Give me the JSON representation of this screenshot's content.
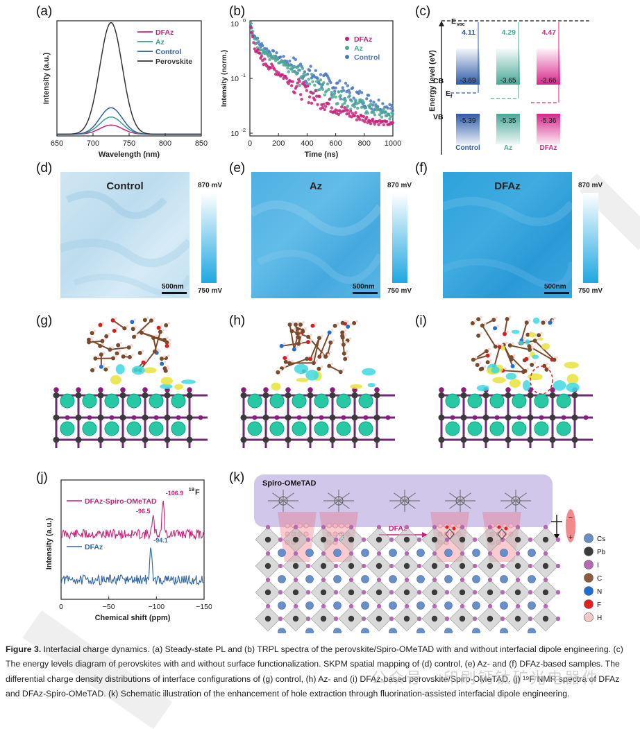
{
  "panels": {
    "a": {
      "label": "(a)"
    },
    "b": {
      "label": "(b)"
    },
    "c": {
      "label": "(c)"
    },
    "d": {
      "label": "(d)"
    },
    "e": {
      "label": "(e)"
    },
    "f": {
      "label": "(f)"
    },
    "g": {
      "label": "(g)"
    },
    "h": {
      "label": "(h)"
    },
    "i": {
      "label": "(i)"
    },
    "j": {
      "label": "(j)"
    },
    "k": {
      "label": "(k)"
    }
  },
  "chart_data": [
    {
      "id": "a",
      "type": "line",
      "title": "",
      "xlabel": "Wavelength (nm)",
      "ylabel": "Intensity (a.u.)",
      "xlim": [
        650,
        850
      ],
      "xticks": [
        "650",
        "700",
        "750",
        "800",
        "850"
      ],
      "legend": [
        "DFAz",
        "Az",
        "Control",
        "Perovskite"
      ],
      "series": [
        {
          "name": "DFAz",
          "color": "#c8207a",
          "center": 725,
          "peak": 0.08
        },
        {
          "name": "Az",
          "color": "#3a9a8a",
          "center": 725,
          "peak": 0.15
        },
        {
          "name": "Control",
          "color": "#2e5f9e",
          "center": 725,
          "peak": 0.23
        },
        {
          "name": "Perovskite",
          "color": "#333333",
          "center": 725,
          "peak": 0.97
        }
      ]
    },
    {
      "id": "b",
      "type": "scatter",
      "title": "",
      "xlabel": "Time (ns)",
      "ylabel": "Intensity (norm.)",
      "xlim": [
        0,
        1000
      ],
      "ylim": [
        0.01,
        1
      ],
      "yscale": "log",
      "xticks": [
        "0",
        "200",
        "400",
        "600",
        "800",
        "1000"
      ],
      "yticks": [
        "10⁰",
        "10⁻¹",
        "10⁻²"
      ],
      "ytick_labels": [
        "10",
        "10",
        "10"
      ],
      "ytick_exps": [
        "0",
        "-1",
        "-2"
      ],
      "legend": [
        "DFAz",
        "Az",
        "Control"
      ],
      "series": [
        {
          "name": "Control",
          "color": "#4a78bf",
          "tau1": 30,
          "tau2": 300,
          "a1": 0.55
        },
        {
          "name": "Az",
          "color": "#49a892",
          "tau1": 28,
          "tau2": 260,
          "a1": 0.6
        },
        {
          "name": "DFAz",
          "color": "#c8207a",
          "tau1": 20,
          "tau2": 210,
          "a1": 0.7
        }
      ]
    },
    {
      "id": "c",
      "type": "bar",
      "title": "",
      "ylabel": "Energy  level (eV)",
      "vacuum_label": "E",
      "vacuum_sub": "vac",
      "fermi_label": "E",
      "fermi_sub": "f",
      "cb_label": "CB",
      "vb_label": "VB",
      "categories": [
        "Control",
        "Az",
        "DFAz"
      ],
      "work_function": [
        "4.11",
        "4.29",
        "4.47"
      ],
      "cb": [
        "-3.69",
        "-3.65",
        "-3.66"
      ],
      "vb": [
        "-5.39",
        "-5.35",
        "-5.36"
      ],
      "colors": [
        "#2e5ba8",
        "#4aa898",
        "#d8258a"
      ]
    },
    {
      "id": "j",
      "type": "line",
      "title": "",
      "xlabel": "Chemical shift (ppm)",
      "ylabel": "Intensity (a.u.)",
      "xlim": [
        0,
        -150
      ],
      "xticks": [
        "0",
        "−50",
        "−100",
        "−150"
      ],
      "nucleus": "19",
      "nucleus_el": "F",
      "series": [
        {
          "name": "DFAz-Spiro-OMeTAD",
          "color": "#c8207a",
          "peaks": [
            "-96.5",
            "-106.9"
          ]
        },
        {
          "name": "DFAz",
          "color": "#2e64a8",
          "peaks": [
            "-94.1"
          ]
        }
      ]
    }
  ],
  "kpfm": [
    {
      "title": "Control",
      "scale": "500nm",
      "max": "870 mV",
      "min": "750 mV"
    },
    {
      "title": "Az",
      "scale": "500nm",
      "max": "870 mV",
      "min": "750 mV"
    },
    {
      "title": "DFAz",
      "scale": "500nm",
      "max": "870 mV",
      "min": "750 mV"
    }
  ],
  "schematic": {
    "spiro_label": "Spiro-OMeTAD",
    "dfaz_label": "DFAz",
    "dipole_minus": "−",
    "dipole_plus": "+",
    "legend": [
      {
        "el": "Cs",
        "color": "#6a8fc8"
      },
      {
        "el": "Pb",
        "color": "#3b3b3b"
      },
      {
        "el": "I",
        "color": "#b46ab0"
      },
      {
        "el": "C",
        "color": "#8a5a3a"
      },
      {
        "el": "N",
        "color": "#1f6fd1"
      },
      {
        "el": "F",
        "color": "#e02020"
      },
      {
        "el": "H",
        "color": "#f2c8c8"
      }
    ]
  },
  "caption": {
    "figure": "Figure 3.",
    "text": " Interfacial charge dynamics. (a) Steady-state PL and (b) TRPL spectra of the perovskite/Spiro-OMeTAD with and without interfacial dipole engineering. (c) The energy levels diagram of perovskites with and without surface functionalization. SKPM spatial mapping of (d) control, (e) Az- and (f) DFAz-based samples. The differential charge density distributions of interface configurations of (g) control, (h) Az- and (i) DFAz-based perovskite/Spiro-OMeTAD. (j) ¹⁹F NMR spectra of DFAz and DFAz-Spiro-OMeTAD. (k) Schematic illustration of the enhancement of hole extraction through fluorination-assisted interfacial dipole engineering."
  },
  "watermark": {
    "text": "公众号 · 印刷钙钛矿光电器件"
  }
}
